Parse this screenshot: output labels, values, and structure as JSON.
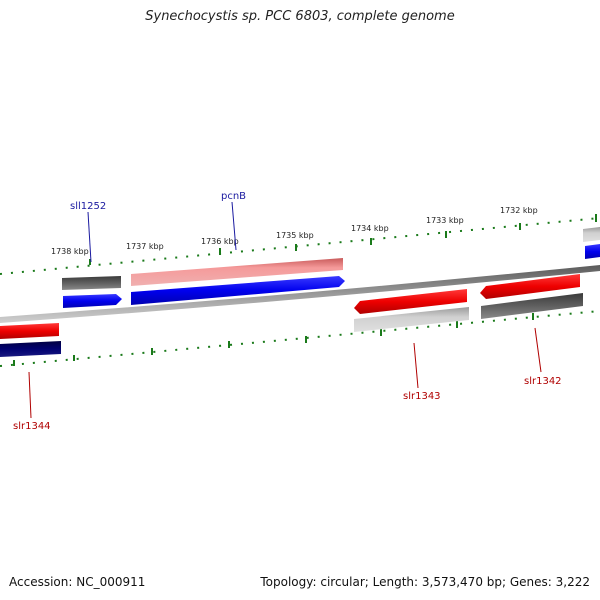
{
  "title": "Synechocystis sp. PCC 6803, complete genome",
  "footer": {
    "accession": "Accession: NC_000911",
    "summary": "Topology: circular; Length: 3,573,470 bp; Genes: 3,222"
  },
  "colors": {
    "forward_gene": "#0000ee",
    "reverse_gene": "#ee0000",
    "forward_light": "#f08a8a",
    "reverse_light": "#c8c8c8",
    "dark_gray": "#555555",
    "navy": "#000066",
    "ticks": "#1a7a1a",
    "backbone": "#888888"
  },
  "kbp_labels": [
    "1738 kbp",
    "1737 kbp",
    "1736 kbp",
    "1735 kbp",
    "1734 kbp",
    "1733 kbp",
    "1732 kbp"
  ],
  "genes": [
    {
      "label": "sll1252"
    },
    {
      "label": "pcnB"
    },
    {
      "label": "slr1344"
    },
    {
      "label": "slr1343"
    },
    {
      "label": "slr1342"
    }
  ]
}
